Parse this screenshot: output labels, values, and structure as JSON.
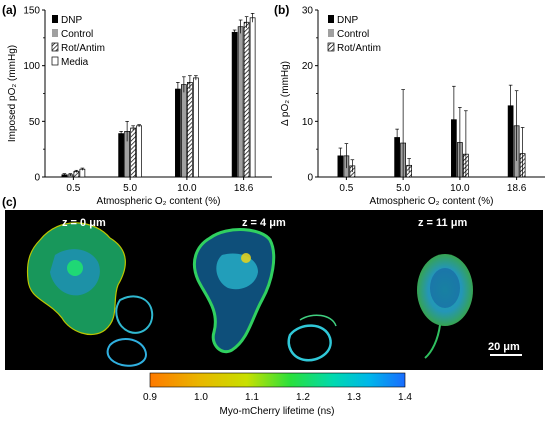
{
  "panel_a": {
    "letter": "(a)",
    "legend": [
      "DNP",
      "Control",
      "Rot/Antim",
      "Media"
    ]
  },
  "panel_b": {
    "letter": "(b)",
    "legend": [
      "DNP",
      "Control",
      "Rot/Antim"
    ]
  },
  "panel_c": {
    "letter": "(c)",
    "z_labels": [
      "z = 0 μm",
      "z = 4 μm",
      "z = 11 μm"
    ],
    "scale_bar": "20 μm",
    "colorbar_label": "Myo-mCherry lifetime (ns)",
    "colorbar_ticks": [
      "0.9",
      "1.0",
      "1.1",
      "1.2",
      "1.3",
      "1.4"
    ]
  },
  "colors": {
    "dnp": "#000000",
    "control": "#a0a0a0",
    "media": "#ffffff",
    "image_bg": "#000000"
  },
  "chart_data": [
    {
      "type": "bar",
      "panel": "(a)",
      "categories": [
        "0.5",
        "5.0",
        "10.0",
        "18.6"
      ],
      "xlabel": "Atmospheric O₂ content (%)",
      "ylabel": "Imposed pO₂ (mmHg)",
      "ylim": [
        0,
        150
      ],
      "yticks": [
        "0",
        "50",
        "100",
        "150"
      ],
      "series": [
        {
          "name": "DNP",
          "values": [
            2,
            39,
            79,
            130
          ],
          "errors": [
            1,
            2,
            6,
            2
          ]
        },
        {
          "name": "Control",
          "values": [
            2,
            41,
            83,
            135
          ],
          "errors": [
            1,
            9,
            7,
            6
          ]
        },
        {
          "name": "Rot/Antim",
          "values": [
            5,
            44,
            85,
            139
          ],
          "errors": [
            1,
            2,
            6,
            5
          ]
        },
        {
          "name": "Media",
          "values": [
            7,
            46,
            89,
            143
          ],
          "errors": [
            1,
            1,
            2,
            4
          ]
        }
      ]
    },
    {
      "type": "bar",
      "panel": "(b)",
      "categories": [
        "0.5",
        "5.0",
        "10.0",
        "18.6"
      ],
      "xlabel": "Atmospheric O₂ content (%)",
      "ylabel": "Δ pO₂ (mmHg)",
      "ylim": [
        0,
        30
      ],
      "yticks": [
        "0",
        "10",
        "20",
        "30"
      ],
      "series": [
        {
          "name": "DNP",
          "values": [
            3.8,
            7.1,
            10.3,
            12.8
          ],
          "errors": [
            1.4,
            1.5,
            6.0,
            3.7
          ]
        },
        {
          "name": "Control",
          "values": [
            3.8,
            6.1,
            6.2,
            9.2
          ],
          "errors": [
            2.2,
            9.6,
            6.3,
            6.3
          ]
        },
        {
          "name": "Rot/Antim",
          "values": [
            2.0,
            2.1,
            4.1,
            4.2
          ],
          "errors": [
            1.1,
            1.2,
            7.8,
            4.7
          ]
        }
      ]
    }
  ]
}
